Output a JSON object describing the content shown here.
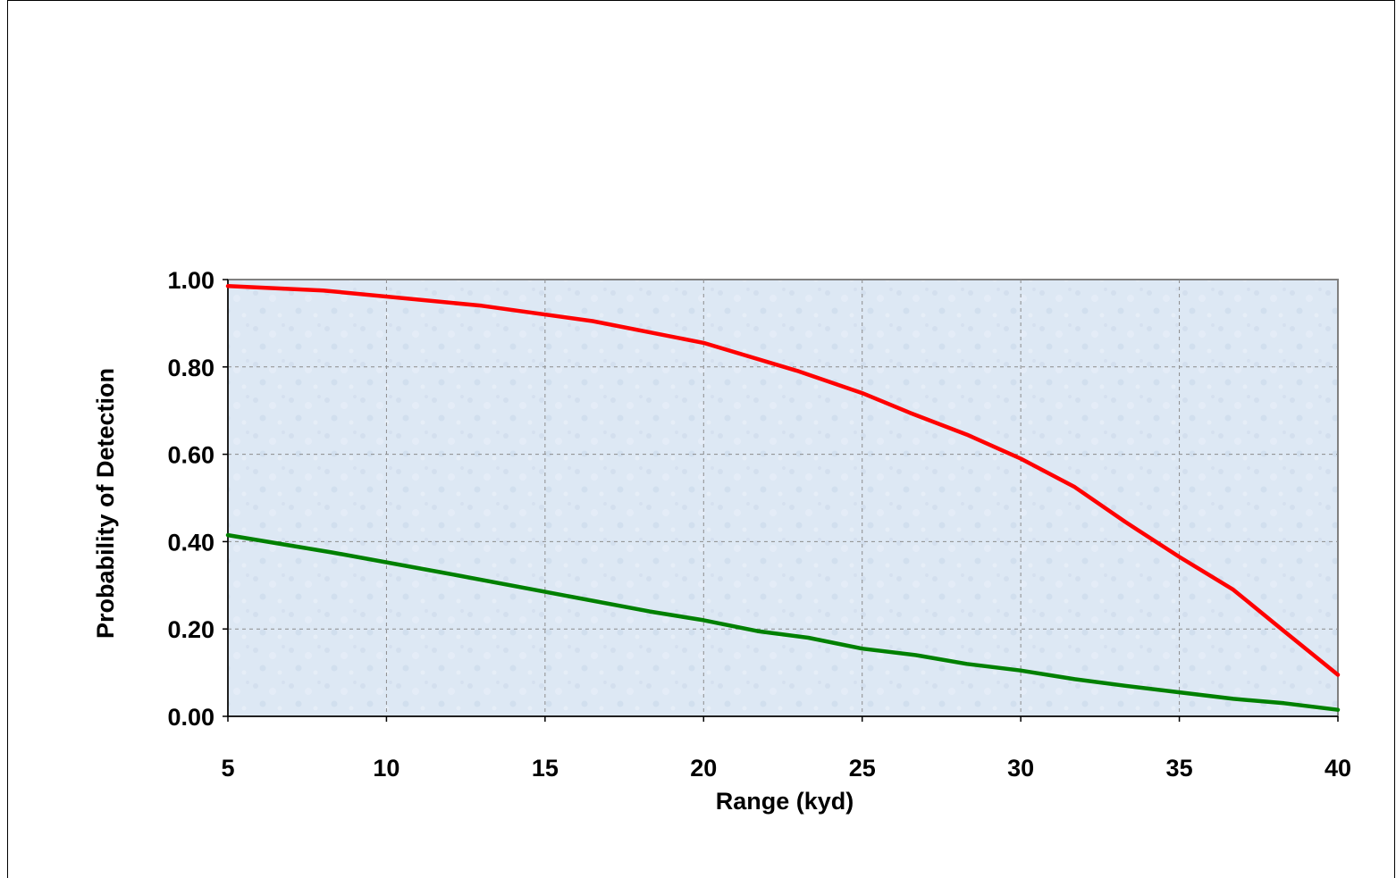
{
  "chart_data": {
    "type": "line",
    "xlabel": "Range (kyd)",
    "ylabel": "Probability of Detection",
    "xlim": [
      5,
      40
    ],
    "ylim": [
      0,
      1
    ],
    "x_ticks": [
      "5",
      "10",
      "15",
      "20",
      "25",
      "30",
      "35",
      "40"
    ],
    "y_ticks": [
      "0.00",
      "0.20",
      "0.40",
      "0.60",
      "0.80",
      "1.00"
    ],
    "grid": true,
    "legend": "none",
    "series": [
      {
        "color": "#ff0000",
        "x": [
          5,
          8,
          13,
          16.5,
          20,
          23,
          25,
          26.5,
          28.3,
          30,
          31.7,
          33.3,
          35,
          36.7,
          38.3,
          40
        ],
        "y": [
          0.985,
          0.975,
          0.94,
          0.905,
          0.855,
          0.79,
          0.74,
          0.695,
          0.645,
          0.59,
          0.525,
          0.445,
          0.365,
          0.29,
          0.195,
          0.095
        ]
      },
      {
        "color": "#008000",
        "x": [
          5,
          8.3,
          11.7,
          15,
          18.3,
          20,
          21.7,
          23.3,
          25,
          26.7,
          28.3,
          30,
          31.7,
          33.3,
          35,
          36.7,
          38.3,
          40
        ],
        "y": [
          0.415,
          0.375,
          0.33,
          0.285,
          0.24,
          0.22,
          0.195,
          0.18,
          0.155,
          0.14,
          0.12,
          0.105,
          0.085,
          0.07,
          0.055,
          0.04,
          0.03,
          0.015
        ]
      }
    ]
  }
}
